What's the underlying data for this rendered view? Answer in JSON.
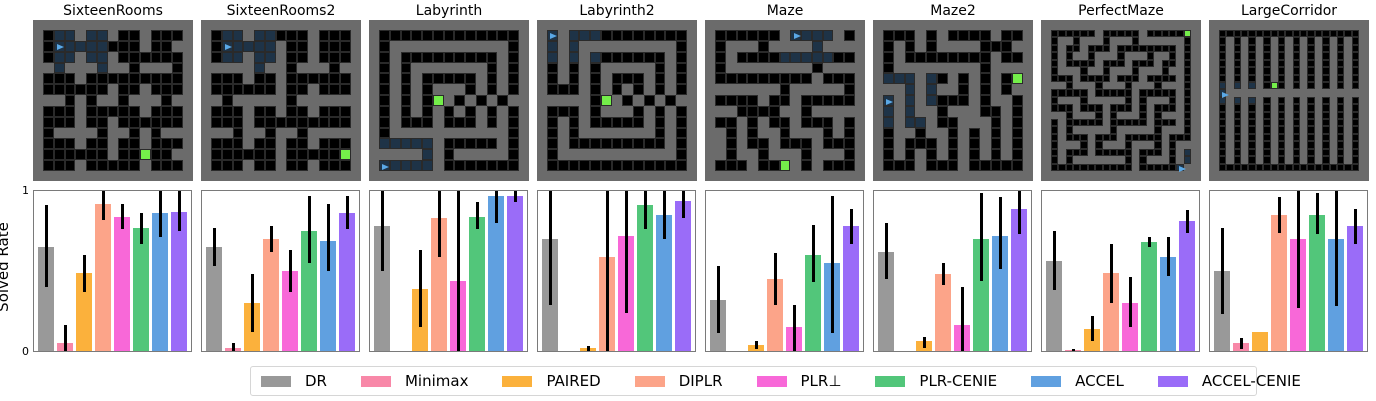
{
  "figure": {
    "ylabel": "Solved Rate",
    "ytick_top": "1",
    "ytick_bottom": "0"
  },
  "legend": [
    {
      "label": "DR",
      "color": "#999999"
    },
    {
      "label": "Minimax",
      "color": "#f888a8"
    },
    {
      "label": "PAIRED",
      "color": "#fbb13c"
    },
    {
      "label": "DIPLR",
      "color": "#fca489"
    },
    {
      "label": "PLR⊥",
      "color": "#f868d8"
    },
    {
      "label": "PLR-CENIE",
      "color": "#52c67a"
    },
    {
      "label": "ACCEL",
      "color": "#60a0e0"
    },
    {
      "label": "ACCEL-CENIE",
      "color": "#9a6cf8"
    }
  ],
  "panels": [
    {
      "title": "SixteenRooms"
    },
    {
      "title": "SixteenRooms2"
    },
    {
      "title": "Labyrinth"
    },
    {
      "title": "Labyrinth2"
    },
    {
      "title": "Maze"
    },
    {
      "title": "Maze2"
    },
    {
      "title": "PerfectMaze"
    },
    {
      "title": "LargeCorridor"
    }
  ],
  "mazes": {
    "SixteenRooms": [
      "0221221001000",
      "0A2222000100",
      "0221221000000",
      "1211121101110",
      "0001000000000",
      "0000001001000",
      "1101011011101",
      "0001000001000",
      "0001001000000",
      "0111101101011",
      "0001001001000",
      "000000100G00",
      "0001000001000"
    ],
    "SixteenRooms2": [
      "0221220001000",
      "0A22221001000",
      "0221221001000",
      "1111211011101",
      "0001001000000",
      "0000001001000",
      "1011111011111",
      "0001001001000",
      "0001000000000",
      "1101101101111",
      "0001001001000",
      "000000100000G0",
      "0001001001000"
    ],
    "Labyrinth": [
      "0000000000000",
      "0111111111110",
      "0100000000010",
      "0101111111010",
      "0101000001010",
      "0101011101010",
      "01010G1010101",
      "0101010101010",
      "0100010001010",
      "0111111111110",
      "2222210000010",
      "1111210111110",
      "A222210000000"
    ],
    "Labyrinth2": [
      "A122200000000",
      "2121111111110",
      "2121200000010",
      "0101011111010",
      "0101010001010",
      "0001010101010",
      "11110G1010101",
      "0001011101010",
      "0101000001010",
      "0101111111010",
      "0100000000010",
      "0111111111110",
      "0000000000000"
    ],
    "Maze": [
      "0000001A22210",
      "011101111211",
      "0100002222200",
      "0111111110111",
      "0000000001000",
      "1111110111110",
      "0000100100000",
      "1100001101111",
      "0010100100010",
      "1010110111010",
      "1010010001000",
      "1011011101110",
      "000100G101000"
    ],
    "Maze2": [
      "0001010000100",
      "0101011110001",
      "0100000000100",
      "0111111110111",
      "222120101010G",
      "1121211010101",
      "A121200010110",
      "2121101110010",
      "2122100111010",
      "0110110101010",
      "0100010101010",
      "0101010101010",
      "0001000100000"
    ],
    "PerfectMaze": [
      "000000100000100000G",
      "0110111011101111110",
      "0100100010000000010",
      "0101101110111011010",
      "0100001000100010010",
      "0111011011101110110",
      "0001000010001000010",
      "1101110111011101110",
      "0000010000010000010",
      "0111011111010111010",
      "0001000100010100010",
      "1101110101110101110",
      "0100000100000100010",
      "0101111101111101110",
      "0100010001000001000",
      "0111010111011101011",
      "0100010000010001012",
      "0101111111010111012",
      "00000000000100000A"
    ],
    "LargeCorridor": [
      "0000000000000000000",
      "0101010101010101010",
      "0101010101010101010",
      "0101010101010101010",
      "0101010101010101010",
      "0101010101010101010",
      "0101010101010101010",
      "2121210G01010101010",
      "A111111111111111111",
      "2121210101010101010",
      "0101010101010101010",
      "0101010101010101010",
      "0101010101010101010",
      "0101010101010101010",
      "0101010101010101010",
      "0101010101010101010",
      "0101010101010101010",
      "0101010101010101010",
      "0000000000000000000"
    ]
  },
  "chart_data": {
    "type": "bar",
    "ylabel": "Solved Rate",
    "ylim": [
      0,
      1
    ],
    "yticks": [
      0,
      1
    ],
    "legend_position": "bottom",
    "series_names": [
      "DR",
      "Minimax",
      "PAIRED",
      "DIPLR",
      "PLR⊥",
      "PLR-CENIE",
      "ACCEL",
      "ACCEL-CENIE"
    ],
    "categories": [
      "SixteenRooms",
      "SixteenRooms2",
      "Labyrinth",
      "Labyrinth2",
      "Maze",
      "Maze2",
      "PerfectMaze",
      "LargeCorridor"
    ],
    "values": {
      "SixteenRooms": [
        0.65,
        0.05,
        0.49,
        0.92,
        0.84,
        0.77,
        0.86,
        0.87
      ],
      "SixteenRooms2": [
        0.65,
        0.02,
        0.3,
        0.7,
        0.5,
        0.75,
        0.69,
        0.86
      ],
      "Labyrinth": [
        0.78,
        0.0,
        0.39,
        0.83,
        0.44,
        0.84,
        0.97,
        0.97
      ],
      "Labyrinth2": [
        0.7,
        0.0,
        0.02,
        0.59,
        0.72,
        0.91,
        0.85,
        0.94
      ],
      "Maze": [
        0.32,
        0.0,
        0.04,
        0.45,
        0.15,
        0.6,
        0.55,
        0.78
      ],
      "Maze2": [
        0.62,
        0.0,
        0.06,
        0.48,
        0.16,
        0.7,
        0.72,
        0.89
      ],
      "PerfectMaze": [
        0.56,
        0.005,
        0.14,
        0.49,
        0.3,
        0.68,
        0.59,
        0.81
      ],
      "LargeCorridor": [
        0.5,
        0.05,
        0.12,
        0.85,
        0.7,
        0.85,
        0.7,
        0.78
      ]
    },
    "error_bars": {
      "SixteenRooms": [
        [
          0.4,
          0.91
        ],
        [
          0.0,
          0.16
        ],
        [
          0.37,
          0.6
        ],
        [
          0.82,
          1.0
        ],
        [
          0.76,
          0.92
        ],
        [
          0.67,
          0.86
        ],
        [
          0.71,
          1.0
        ],
        [
          0.75,
          1.0
        ]
      ],
      "SixteenRooms2": [
        [
          0.53,
          0.77
        ],
        [
          0.0,
          0.05
        ],
        [
          0.12,
          0.48
        ],
        [
          0.62,
          0.78
        ],
        [
          0.37,
          0.63
        ],
        [
          0.55,
          0.97
        ],
        [
          0.5,
          0.92
        ],
        [
          0.76,
          0.97
        ]
      ],
      "Labyrinth": [
        [
          0.5,
          1.0
        ],
        [
          0.0,
          0.0
        ],
        [
          0.15,
          0.63
        ],
        [
          0.59,
          1.0
        ],
        [
          0.0,
          1.0
        ],
        [
          0.76,
          0.93
        ],
        [
          0.8,
          1.0
        ],
        [
          0.93,
          1.0
        ]
      ],
      "Labyrinth2": [
        [
          0.29,
          1.0
        ],
        [
          0.0,
          0.0
        ],
        [
          0.0,
          0.03
        ],
        [
          0.0,
          1.0
        ],
        [
          0.24,
          1.0
        ],
        [
          0.76,
          1.0
        ],
        [
          0.7,
          1.0
        ],
        [
          0.83,
          1.0
        ]
      ],
      "Maze": [
        [
          0.11,
          0.53
        ],
        [
          0.0,
          0.0
        ],
        [
          0.01,
          0.06
        ],
        [
          0.29,
          0.61
        ],
        [
          0.0,
          0.29
        ],
        [
          0.43,
          0.79
        ],
        [
          0.11,
          0.97
        ],
        [
          0.67,
          0.89
        ]
      ],
      "Maze2": [
        [
          0.45,
          0.8
        ],
        [
          0.0,
          0.0
        ],
        [
          0.02,
          0.09
        ],
        [
          0.41,
          0.55
        ],
        [
          0.0,
          0.4
        ],
        [
          0.44,
          0.99
        ],
        [
          0.51,
          0.96
        ],
        [
          0.73,
          1.0
        ]
      ],
      "PerfectMaze": [
        [
          0.38,
          0.75
        ],
        [
          0.0,
          0.01
        ],
        [
          0.06,
          0.22
        ],
        [
          0.3,
          0.67
        ],
        [
          0.15,
          0.46
        ],
        [
          0.65,
          0.71
        ],
        [
          0.47,
          0.71
        ],
        [
          0.74,
          0.88
        ]
      ],
      "LargeCorridor": [
        [
          0.23,
          0.77
        ],
        [
          0.01,
          0.08
        ],
        [
          0.12,
          0.12
        ],
        [
          0.74,
          0.96
        ],
        [
          0.27,
          1.0
        ],
        [
          0.73,
          0.99
        ],
        [
          0.28,
          1.0
        ],
        [
          0.67,
          0.89
        ]
      ]
    }
  }
}
